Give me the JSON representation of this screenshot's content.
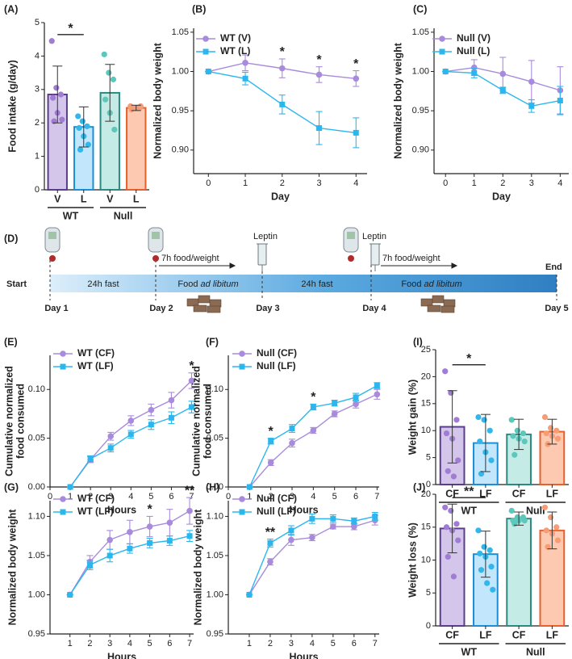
{
  "chart_data": [
    {
      "type": "bar",
      "label": "(A)",
      "ylabel": [
        "Food intake (g/day)"
      ],
      "ylim": [
        0,
        5
      ],
      "yticks": [
        0,
        1,
        2,
        3,
        4,
        5
      ],
      "categories": [
        "V",
        "L",
        "V",
        "L"
      ],
      "group_labels": [
        "WT",
        "Null"
      ],
      "values": [
        2.85,
        1.88,
        2.9,
        2.45
      ],
      "errors": [
        0.85,
        0.6,
        0.85,
        0.08
      ],
      "colors": [
        "#d3c6ea",
        "#c2e6fb",
        "#c4ebe5",
        "#fdc9b1"
      ],
      "edge_colors": [
        "#5a3d8c",
        "#1b8fd6",
        "#2c8a80",
        "#e8612d"
      ],
      "point_colors": [
        "#a07cd3",
        "#33b6ea",
        "#5bc8bb",
        "#f79d76"
      ],
      "points": [
        [
          4.45,
          3.05,
          2.85,
          2.75,
          2.3,
          2.1,
          2.05
        ],
        [
          2.2,
          2.05,
          1.9,
          1.85,
          1.6,
          1.35,
          1.2
        ],
        [
          4.05,
          3.5,
          3.3,
          2.7,
          2.3,
          1.8
        ],
        [
          2.5,
          2.45,
          2.45,
          2.4,
          2.45,
          2.5
        ]
      ],
      "annotations": [
        {
          "text": "*",
          "from": 0,
          "to": 1
        }
      ]
    },
    {
      "type": "line",
      "label": "(B)",
      "xlabel": "Day",
      "ylabel": [
        "Normalized body weight"
      ],
      "x": [
        0,
        1,
        2,
        3,
        4
      ],
      "xlim": [
        -0.4,
        4.3
      ],
      "xticks": [
        0,
        1,
        2,
        3,
        4
      ],
      "ylim": [
        0.87,
        1.055
      ],
      "yticks": [
        {
          "value": 0.9,
          "label": "0.90"
        },
        0.95,
        {
          "value": 1,
          "label": "1.00"
        },
        1.05
      ],
      "series": [
        {
          "name": "WT (V)",
          "color": "#a88bdc",
          "marker": "circle",
          "values": [
            1.0,
            1.011,
            1.004,
            0.996,
            0.991
          ],
          "errors": [
            0,
            0.01,
            0.012,
            0.01,
            0.01
          ]
        },
        {
          "name": "WT (L)",
          "color": "#2bb7ee",
          "marker": "square",
          "values": [
            1.0,
            0.991,
            0.958,
            0.928,
            0.922
          ],
          "errors": [
            0,
            0.008,
            0.012,
            0.021,
            0.019
          ]
        }
      ],
      "annotations": [
        {
          "text": "*",
          "x": 2
        },
        {
          "text": "*",
          "x": 3
        },
        {
          "text": "*",
          "x": 4
        }
      ]
    },
    {
      "type": "line",
      "label": "(C)",
      "xlabel": "Day",
      "ylabel": [
        "Normalized body weight"
      ],
      "x": [
        0,
        1,
        2,
        3,
        4
      ],
      "xlim": [
        -0.4,
        4.3
      ],
      "xticks": [
        0,
        1,
        2,
        3,
        4
      ],
      "ylim": [
        0.87,
        1.055
      ],
      "yticks": [
        {
          "value": 0.9,
          "label": "0.90"
        },
        0.95,
        {
          "value": 1,
          "label": "1.00"
        },
        1.05
      ],
      "series": [
        {
          "name": "Null (V)",
          "color": "#a88bdc",
          "marker": "circle",
          "values": [
            1.0,
            1.005,
            0.997,
            0.987,
            0.976
          ],
          "errors": [
            0,
            0.01,
            0.021,
            0.027,
            0.03
          ]
        },
        {
          "name": "Null (L)",
          "color": "#2bb7ee",
          "marker": "square",
          "values": [
            1.0,
            0.998,
            0.976,
            0.956,
            0.963
          ],
          "errors": [
            0,
            0.006,
            0.004,
            0.008,
            0.018
          ]
        }
      ],
      "annotations": []
    },
    {
      "type": "line",
      "label": "(E)",
      "xlabel": "Hours",
      "ylabel": [
        "Cumulative normalized",
        "food consumed"
      ],
      "x": [
        1,
        2,
        3,
        4,
        5,
        6,
        7
      ],
      "xlim": [
        0,
        7.1
      ],
      "xticks": [
        0,
        1,
        2,
        3,
        4,
        5,
        6,
        7
      ],
      "ylim": [
        0,
        0.135
      ],
      "yticks": [
        {
          "value": 0,
          "label": "0.00"
        },
        0.05,
        {
          "value": 0.1,
          "label": "0.10"
        }
      ],
      "series": [
        {
          "name": "WT (CF)",
          "color": "#a88bdc",
          "marker": "circle",
          "values": [
            0,
            0.028,
            0.052,
            0.068,
            0.079,
            0.089,
            0.109
          ],
          "errors": [
            0,
            0.003,
            0.004,
            0.005,
            0.006,
            0.008,
            0.008
          ]
        },
        {
          "name": "WT (LF)",
          "color": "#2bb7ee",
          "marker": "square",
          "values": [
            0,
            0.029,
            0.04,
            0.054,
            0.064,
            0.071,
            0.082
          ],
          "errors": [
            0,
            0.003,
            0.004,
            0.004,
            0.005,
            0.006,
            0.006
          ]
        }
      ],
      "annotations": [
        {
          "text": "*",
          "x": 7
        }
      ]
    },
    {
      "type": "line",
      "label": "(F)",
      "xlabel": "Hours",
      "ylabel": [
        "Cumulative normalized",
        "food consumed"
      ],
      "x": [
        1,
        2,
        3,
        4,
        5,
        6,
        7
      ],
      "xlim": [
        0,
        7.1
      ],
      "xticks": [
        0,
        1,
        2,
        3,
        4,
        5,
        6,
        7
      ],
      "ylim": [
        0,
        0.135
      ],
      "yticks": [
        {
          "value": 0,
          "label": "0.00"
        },
        0.05,
        {
          "value": 0.1,
          "label": "0.10"
        }
      ],
      "series": [
        {
          "name": "Null (CF)",
          "color": "#a88bdc",
          "marker": "circle",
          "values": [
            0,
            0.025,
            0.045,
            0.058,
            0.075,
            0.085,
            0.095
          ],
          "errors": [
            0,
            0.003,
            0.004,
            0.003,
            0.003,
            0.004,
            0.005
          ]
        },
        {
          "name": "Null (LF)",
          "color": "#2bb7ee",
          "marker": "square",
          "values": [
            0,
            0.047,
            0.06,
            0.082,
            0.086,
            0.092,
            0.104
          ],
          "errors": [
            0,
            0.003,
            0.004,
            0.003,
            0.003,
            0.004,
            0.003
          ]
        }
      ],
      "annotations": [
        {
          "text": "*",
          "x": 2
        },
        {
          "text": "*",
          "x": 4
        }
      ]
    },
    {
      "type": "bar",
      "label": "(I)",
      "ylabel": [
        "Weight gain (%)"
      ],
      "ylim": [
        0,
        25
      ],
      "yticks": [
        0,
        5,
        10,
        15,
        20,
        25
      ],
      "categories": [
        "CF",
        "LF",
        "CF",
        "LF"
      ],
      "group_labels": [
        "WT",
        "Null"
      ],
      "values": [
        10.7,
        7.7,
        9.3,
        9.8
      ],
      "errors": [
        6.7,
        5.3,
        2.8,
        2.3
      ],
      "colors": [
        "#d3c6ea",
        "#c2e6fb",
        "#c4ebe5",
        "#fdc9b1"
      ],
      "edge_colors": [
        "#5a3d8c",
        "#1b8fd6",
        "#2c8a80",
        "#e8612d"
      ],
      "point_colors": [
        "#a07cd3",
        "#33b6ea",
        "#5bc8bb",
        "#f79d76"
      ],
      "points": [
        [
          21,
          17,
          12,
          9.5,
          8.5,
          4.5,
          2.5,
          1.5
        ],
        [
          12.5,
          12,
          10,
          8,
          6,
          4.5,
          2
        ],
        [
          12,
          10,
          9.5,
          9,
          8.5,
          8,
          5.5
        ],
        [
          12.5,
          10.5,
          10,
          9.5,
          9,
          8.5,
          7.5
        ]
      ],
      "annotations": [
        {
          "text": "*",
          "from": 0,
          "to": 1
        }
      ]
    },
    {
      "type": "line",
      "label": "(G)",
      "xlabel": "Hours",
      "ylabel": [
        "Normalized body weight"
      ],
      "x": [
        1,
        2,
        3,
        4,
        5,
        6,
        7
      ],
      "xlim": [
        0,
        7.2
      ],
      "xticks": [
        1,
        2,
        3,
        4,
        5,
        6,
        7
      ],
      "ylim": [
        0.95,
        1.12
      ],
      "yticks": [
        0.95,
        {
          "value": 1,
          "label": "1.00"
        },
        1.05,
        {
          "value": 1.1,
          "label": "1.10"
        }
      ],
      "series": [
        {
          "name": "WT (CF)",
          "color": "#a88bdc",
          "marker": "circle",
          "values": [
            1.0,
            1.042,
            1.07,
            1.08,
            1.087,
            1.092,
            1.107
          ],
          "errors": [
            0,
            0.008,
            0.012,
            0.015,
            0.013,
            0.017,
            0.017
          ]
        },
        {
          "name": "WT (LF)",
          "color": "#2bb7ee",
          "marker": "square",
          "values": [
            1.0,
            1.038,
            1.05,
            1.059,
            1.066,
            1.069,
            1.075
          ],
          "errors": [
            0,
            0.006,
            0.008,
            0.006,
            0.006,
            0.006,
            0.007
          ]
        }
      ],
      "annotations": [
        {
          "text": "*",
          "x": 5
        },
        {
          "text": "**",
          "x": 7
        }
      ]
    },
    {
      "type": "line",
      "label": "(H)",
      "xlabel": "Hours",
      "ylabel": [
        "Normalized body weight"
      ],
      "x": [
        1,
        2,
        3,
        4,
        5,
        6,
        7
      ],
      "xlim": [
        0,
        7.2
      ],
      "xticks": [
        1,
        2,
        3,
        4,
        5,
        6,
        7
      ],
      "ylim": [
        0.95,
        1.12
      ],
      "yticks": [
        0.95,
        {
          "value": 1,
          "label": "1.00"
        },
        1.05,
        {
          "value": 1.1,
          "label": "1.10"
        }
      ],
      "series": [
        {
          "name": "Null (CF)",
          "color": "#a88bdc",
          "marker": "circle",
          "values": [
            1.0,
            1.042,
            1.07,
            1.073,
            1.087,
            1.087,
            1.095
          ],
          "errors": [
            0,
            0.004,
            0.007,
            0.004,
            0.003,
            0.004,
            0.006
          ]
        },
        {
          "name": "Null (LF)",
          "color": "#2bb7ee",
          "marker": "square",
          "values": [
            1.0,
            1.066,
            1.082,
            1.097,
            1.097,
            1.094,
            1.1
          ],
          "errors": [
            0,
            0.005,
            0.006,
            0.006,
            0.005,
            0.004,
            0.005
          ]
        }
      ],
      "annotations": [
        {
          "text": "**",
          "x": 2
        }
      ]
    },
    {
      "type": "bar",
      "label": "(J)",
      "ylabel": [
        "Weight loss (%)"
      ],
      "ylim": [
        0,
        20
      ],
      "yticks": [
        0,
        5,
        10,
        15,
        20
      ],
      "categories": [
        "CF",
        "LF",
        "CF",
        "LF"
      ],
      "group_labels": [
        "WT",
        "Null"
      ],
      "values": [
        14.8,
        10.9,
        16.3,
        14.5
      ],
      "errors": [
        3.7,
        3.5,
        1.0,
        2.8
      ],
      "colors": [
        "#d3c6ea",
        "#c2e6fb",
        "#c4ebe5",
        "#fdc9b1"
      ],
      "edge_colors": [
        "#5a3d8c",
        "#1b8fd6",
        "#2c8a80",
        "#e8612d"
      ],
      "point_colors": [
        "#a07cd3",
        "#33b6ea",
        "#5bc8bb",
        "#f79d76"
      ],
      "points": [
        [
          18,
          17.5,
          15.5,
          15,
          14.5,
          13,
          10.5,
          7.5
        ],
        [
          14.5,
          12,
          11.5,
          11,
          10.5,
          9,
          8.5,
          6.5,
          5.5
        ],
        [
          17.5,
          16.5,
          16.5,
          16,
          16,
          16,
          15.5
        ],
        [
          18,
          16.5,
          15,
          14.5,
          14,
          13,
          12
        ]
      ],
      "annotations": [
        {
          "text": "**",
          "from": 0,
          "to": 1
        }
      ]
    }
  ],
  "diagram": {
    "label": "(D)",
    "start": "Start",
    "end": "End",
    "days": [
      "Day 1",
      "Day 2",
      "Day 3",
      "Day 4",
      "Day 5"
    ],
    "phases": [
      {
        "text": "24h fast"
      },
      {
        "text": "Food",
        "italic": "ad libitum"
      },
      {
        "text": "24h fast"
      },
      {
        "text": "Food",
        "italic": "ad libitum"
      }
    ],
    "measure": [
      "7h food/weight",
      "7h food/weight"
    ],
    "injections": [
      "Leptin",
      "Leptin"
    ]
  }
}
